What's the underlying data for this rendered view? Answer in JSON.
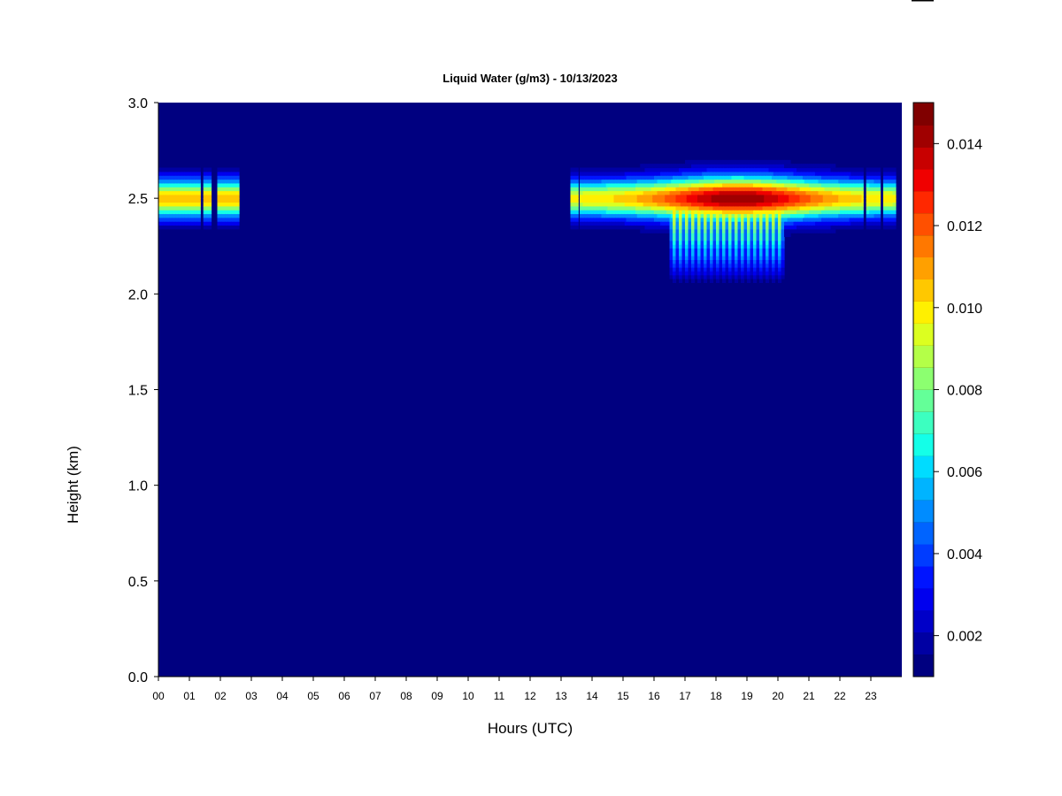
{
  "chart_data": {
    "type": "heatmap",
    "title": "Liquid Water (g/m3) - 10/13/2023",
    "xlabel": "Hours (UTC)",
    "ylabel": "Height (km)",
    "xlim": [
      0,
      24
    ],
    "ylim": [
      0,
      3.0
    ],
    "x_ticks": [
      "00",
      "01",
      "02",
      "03",
      "04",
      "05",
      "06",
      "07",
      "08",
      "09",
      "10",
      "11",
      "12",
      "13",
      "14",
      "15",
      "16",
      "17",
      "18",
      "19",
      "20",
      "21",
      "22",
      "23"
    ],
    "y_ticks": [
      "0.0",
      "0.5",
      "1.0",
      "1.5",
      "2.0",
      "2.5",
      "3.0"
    ],
    "colorbar": {
      "min": 0.001,
      "max": 0.015,
      "tick_values": [
        0.002,
        0.004,
        0.006,
        0.008,
        0.01,
        0.012,
        0.014
      ],
      "tick_labels": [
        "0.002",
        "0.004",
        "0.006",
        "0.008",
        "0.010",
        "0.012",
        "0.014"
      ],
      "colors": [
        "#000080",
        "#0000A3",
        "#0000C8",
        "#0000EE",
        "#0014FF",
        "#003CFF",
        "#0064FF",
        "#008CFF",
        "#00B4FF",
        "#00DCFF",
        "#14FFE8",
        "#3CFFC0",
        "#64FF98",
        "#8CFF70",
        "#B4FF48",
        "#DCFF20",
        "#FFF000",
        "#FFC800",
        "#FFA000",
        "#FF7800",
        "#FF5000",
        "#FF2800",
        "#F00000",
        "#C80000",
        "#A00000",
        "#800000"
      ]
    },
    "background_value": 0.001,
    "cloud_layers": [
      {
        "x_range": [
          0.0,
          2.6
        ],
        "center_height": 2.5,
        "peak_value": 0.0105,
        "gaps": [
          [
            1.33,
            1.45
          ],
          [
            1.68,
            1.9
          ]
        ]
      },
      {
        "x_range": [
          13.3,
          24.0
        ],
        "center_height": 2.5,
        "peak_value": 0.0145,
        "gaps": [
          [
            13.55,
            13.62
          ],
          [
            22.75,
            22.85
          ],
          [
            23.3,
            23.42
          ],
          [
            23.8,
            24.0
          ]
        ]
      },
      {
        "x_range": [
          16.5,
          20.2
        ],
        "center_height": 2.3,
        "peak_value": 0.011,
        "extends_down_to": 2.05,
        "note_streaks": true
      }
    ]
  }
}
